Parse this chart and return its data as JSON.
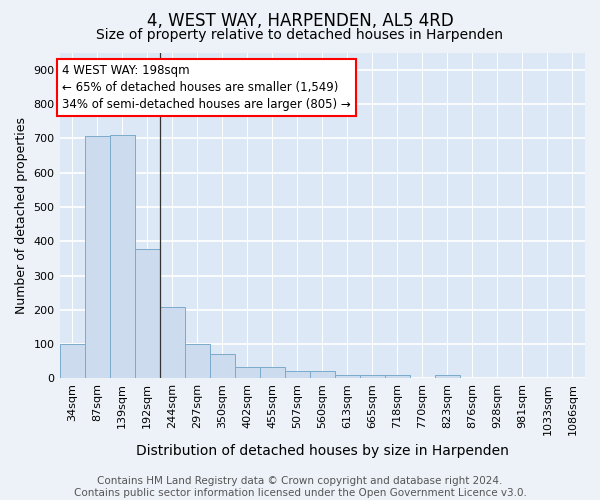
{
  "title": "4, WEST WAY, HARPENDEN, AL5 4RD",
  "subtitle": "Size of property relative to detached houses in Harpenden",
  "xlabel": "Distribution of detached houses by size in Harpenden",
  "ylabel": "Number of detached properties",
  "bar_color": "#ccdcee",
  "bar_edge_color": "#7aaacb",
  "background_color": "#dce8f5",
  "fig_background_color": "#edf2f8",
  "grid_color": "#ffffff",
  "categories": [
    "34sqm",
    "87sqm",
    "139sqm",
    "192sqm",
    "244sqm",
    "297sqm",
    "350sqm",
    "402sqm",
    "455sqm",
    "507sqm",
    "560sqm",
    "613sqm",
    "665sqm",
    "718sqm",
    "770sqm",
    "823sqm",
    "876sqm",
    "928sqm",
    "981sqm",
    "1033sqm",
    "1086sqm"
  ],
  "values": [
    100,
    707,
    710,
    378,
    207,
    100,
    72,
    32,
    32,
    22,
    22,
    10,
    10,
    10,
    0,
    10,
    0,
    0,
    0,
    0,
    0
  ],
  "ylim": [
    0,
    950
  ],
  "yticks": [
    0,
    100,
    200,
    300,
    400,
    500,
    600,
    700,
    800,
    900
  ],
  "annotation_line1": "4 WEST WAY: 198sqm",
  "annotation_line2": "← 65% of detached houses are smaller (1,549)",
  "annotation_line3": "34% of semi-detached houses are larger (805) →",
  "vline_x": 3.5,
  "footer": "Contains HM Land Registry data © Crown copyright and database right 2024.\nContains public sector information licensed under the Open Government Licence v3.0.",
  "title_fontsize": 12,
  "subtitle_fontsize": 10,
  "xlabel_fontsize": 10,
  "ylabel_fontsize": 9,
  "tick_fontsize": 8,
  "annotation_fontsize": 8.5,
  "footer_fontsize": 7.5
}
